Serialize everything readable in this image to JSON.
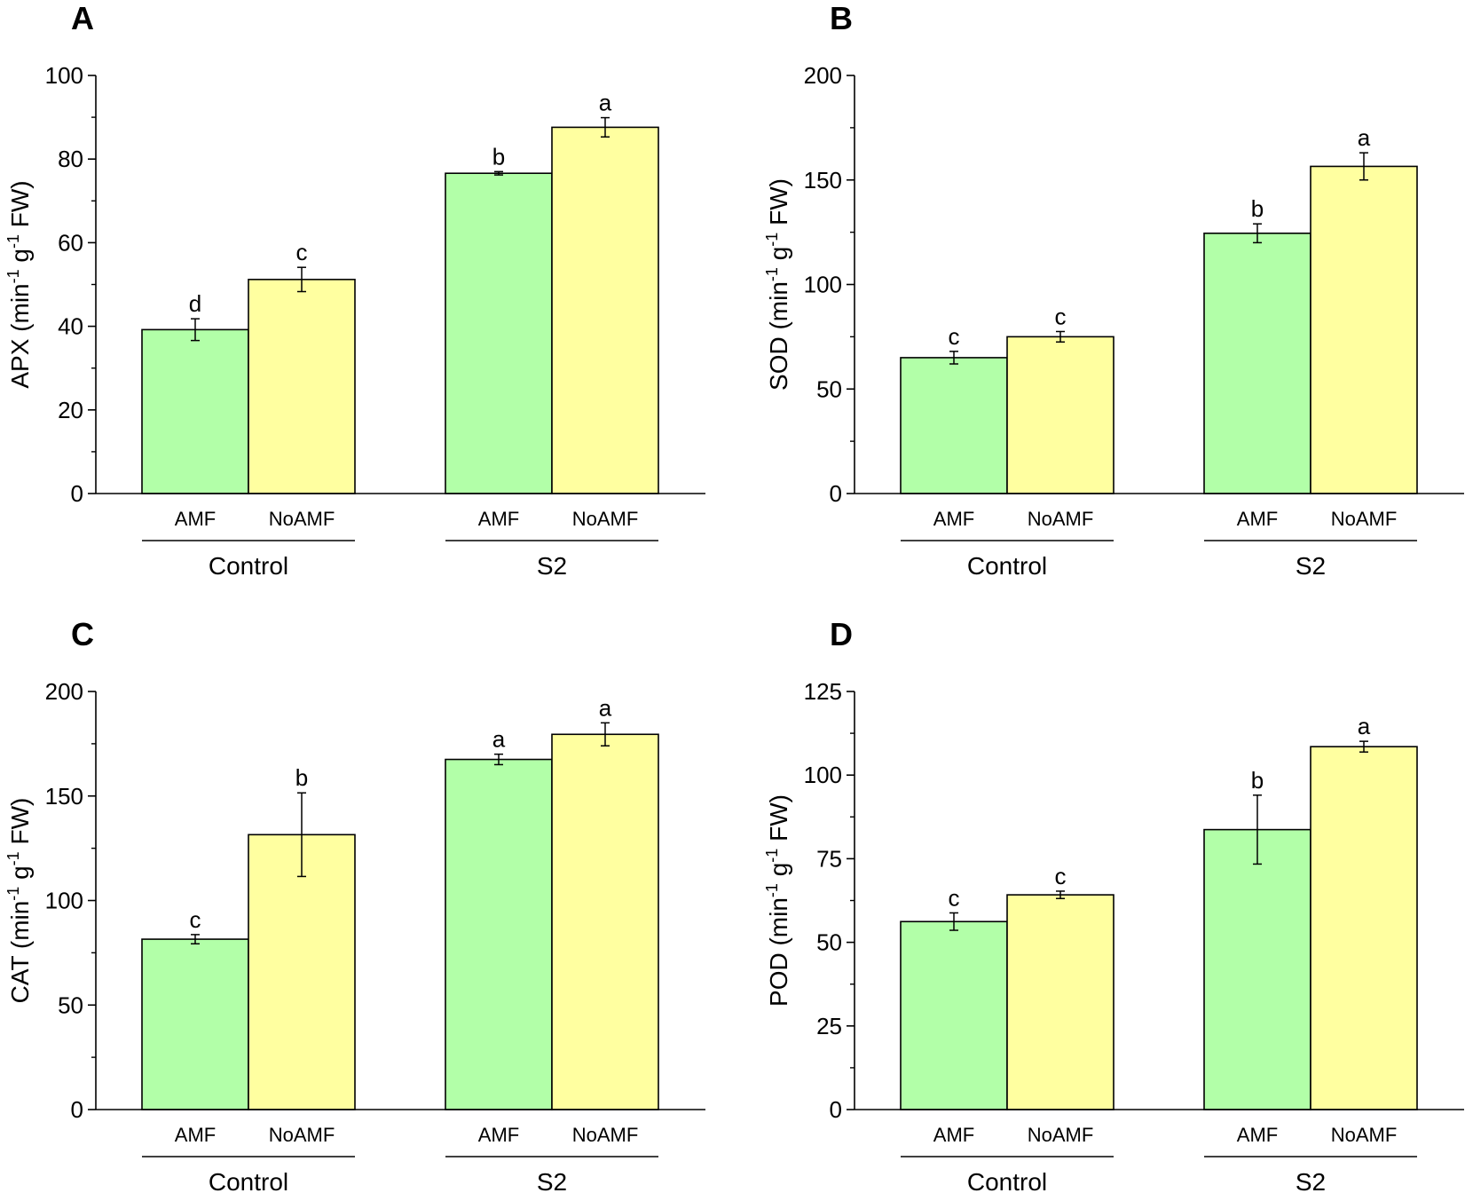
{
  "colors": {
    "amf": "#b2ffa8",
    "noamf": "#ffffa0",
    "stroke": "#000000"
  },
  "chart_data": [
    {
      "type": "bar",
      "panel": "A",
      "ylabel": {
        "metric": "APX",
        "unit_start": "(min",
        "sup1": "-1",
        "g": " g",
        "sup2": "-1",
        "unit_end": " FW)"
      },
      "ylim": [
        0,
        100
      ],
      "yticks": [
        0,
        20,
        40,
        60,
        80,
        100
      ],
      "groups": [
        "Control",
        "S2"
      ],
      "categories": [
        "AMF",
        "NoAMF"
      ],
      "series": [
        {
          "name": "AMF",
          "values": [
            39.2,
            76.6
          ],
          "errors": [
            2.6,
            0.4
          ],
          "letters": [
            "d",
            "b"
          ]
        },
        {
          "name": "NoAMF",
          "values": [
            51.2,
            87.6
          ],
          "errors": [
            2.9,
            2.3
          ],
          "letters": [
            "c",
            "a"
          ]
        }
      ]
    },
    {
      "type": "bar",
      "panel": "B",
      "ylabel": {
        "metric": "SOD",
        "unit_start": "(min",
        "sup1": "-1",
        "g": " g",
        "sup2": "-1",
        "unit_end": " FW)"
      },
      "ylim": [
        0,
        200
      ],
      "yticks": [
        0,
        50,
        100,
        150,
        200
      ],
      "groups": [
        "Control",
        "S2"
      ],
      "categories": [
        "AMF",
        "NoAMF"
      ],
      "series": [
        {
          "name": "AMF",
          "values": [
            65,
            124.5
          ],
          "errors": [
            3,
            4.5
          ],
          "letters": [
            "c",
            "b"
          ]
        },
        {
          "name": "NoAMF",
          "values": [
            75,
            156.5
          ],
          "errors": [
            2.5,
            6.5
          ],
          "letters": [
            "c",
            "a"
          ]
        }
      ]
    },
    {
      "type": "bar",
      "panel": "C",
      "ylabel": {
        "metric": "CAT",
        "unit_start": "(min",
        "sup1": "-1",
        "g": " g",
        "sup2": "-1",
        "unit_end": " FW)"
      },
      "ylim": [
        0,
        200
      ],
      "yticks": [
        0,
        50,
        100,
        150,
        200
      ],
      "groups": [
        "Control",
        "S2"
      ],
      "categories": [
        "AMF",
        "NoAMF"
      ],
      "series": [
        {
          "name": "AMF",
          "values": [
            81.5,
            167.5
          ],
          "errors": [
            2.2,
            2.5
          ],
          "letters": [
            "c",
            "a"
          ]
        },
        {
          "name": "NoAMF",
          "values": [
            131.5,
            179.5
          ],
          "errors": [
            20,
            5.5
          ],
          "letters": [
            "b",
            "a"
          ]
        }
      ]
    },
    {
      "type": "bar",
      "panel": "D",
      "ylabel": {
        "metric": "POD",
        "unit_start": "(min",
        "sup1": "-1",
        "g": " g",
        "sup2": "-1",
        "unit_end": " FW)"
      },
      "ylim": [
        0,
        125
      ],
      "yticks": [
        0,
        25,
        50,
        75,
        100,
        125
      ],
      "groups": [
        "Control",
        "S2"
      ],
      "categories": [
        "AMF",
        "NoAMF"
      ],
      "series": [
        {
          "name": "AMF",
          "values": [
            56.2,
            83.7
          ],
          "errors": [
            2.6,
            10.3
          ],
          "letters": [
            "c",
            "b"
          ]
        },
        {
          "name": "NoAMF",
          "values": [
            64.2,
            108.5
          ],
          "errors": [
            1.1,
            1.6
          ],
          "letters": [
            "c",
            "a"
          ]
        }
      ]
    }
  ]
}
